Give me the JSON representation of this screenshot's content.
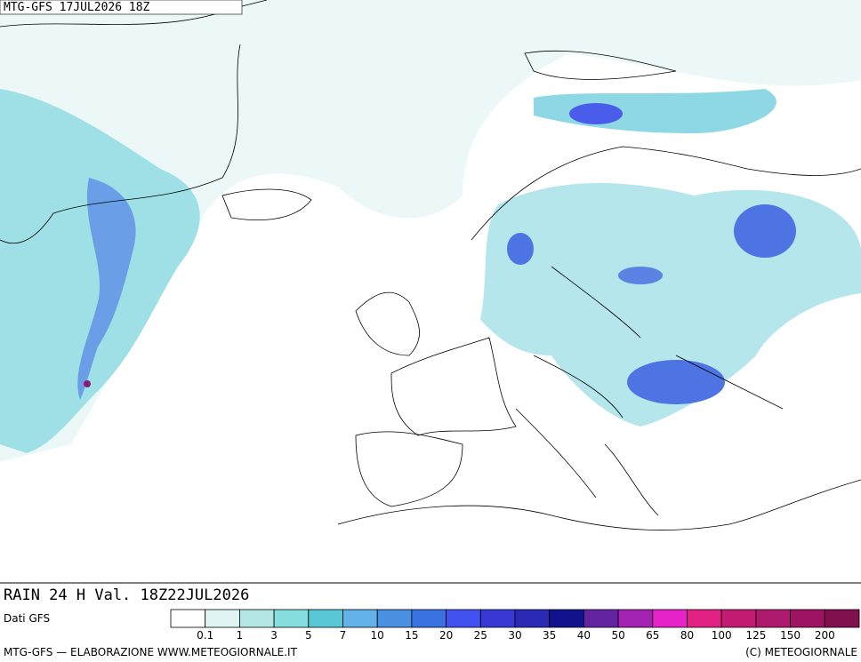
{
  "header": {
    "model_run": "MTG-GFS 17JUL2026 18Z"
  },
  "footer": {
    "product": "RAIN 24 H Val. 18Z22JUL2026",
    "source": "Dati GFS",
    "credits": "MTG-GFS — ELABORAZIONE WWW.METEOGIORNALE.IT",
    "copyright": "(C) METEOGIORNALE"
  },
  "legend": {
    "labels": [
      "0.1",
      "1",
      "3",
      "5",
      "7",
      "10",
      "15",
      "20",
      "25",
      "30",
      "35",
      "40",
      "50",
      "65",
      "80",
      "100",
      "125",
      "150",
      "200"
    ],
    "colors": [
      "#ffffff",
      "#e0f4f4",
      "#b4e6e6",
      "#86dede",
      "#58c8d6",
      "#64b2ea",
      "#4a90e2",
      "#3a72e2",
      "#4252f0",
      "#3838d6",
      "#2a2ab6",
      "#12128e",
      "#6424a2",
      "#a422b2",
      "#e622c8",
      "#e22282",
      "#c41a72",
      "#b01a6e",
      "#a01262",
      "#801050"
    ]
  }
}
